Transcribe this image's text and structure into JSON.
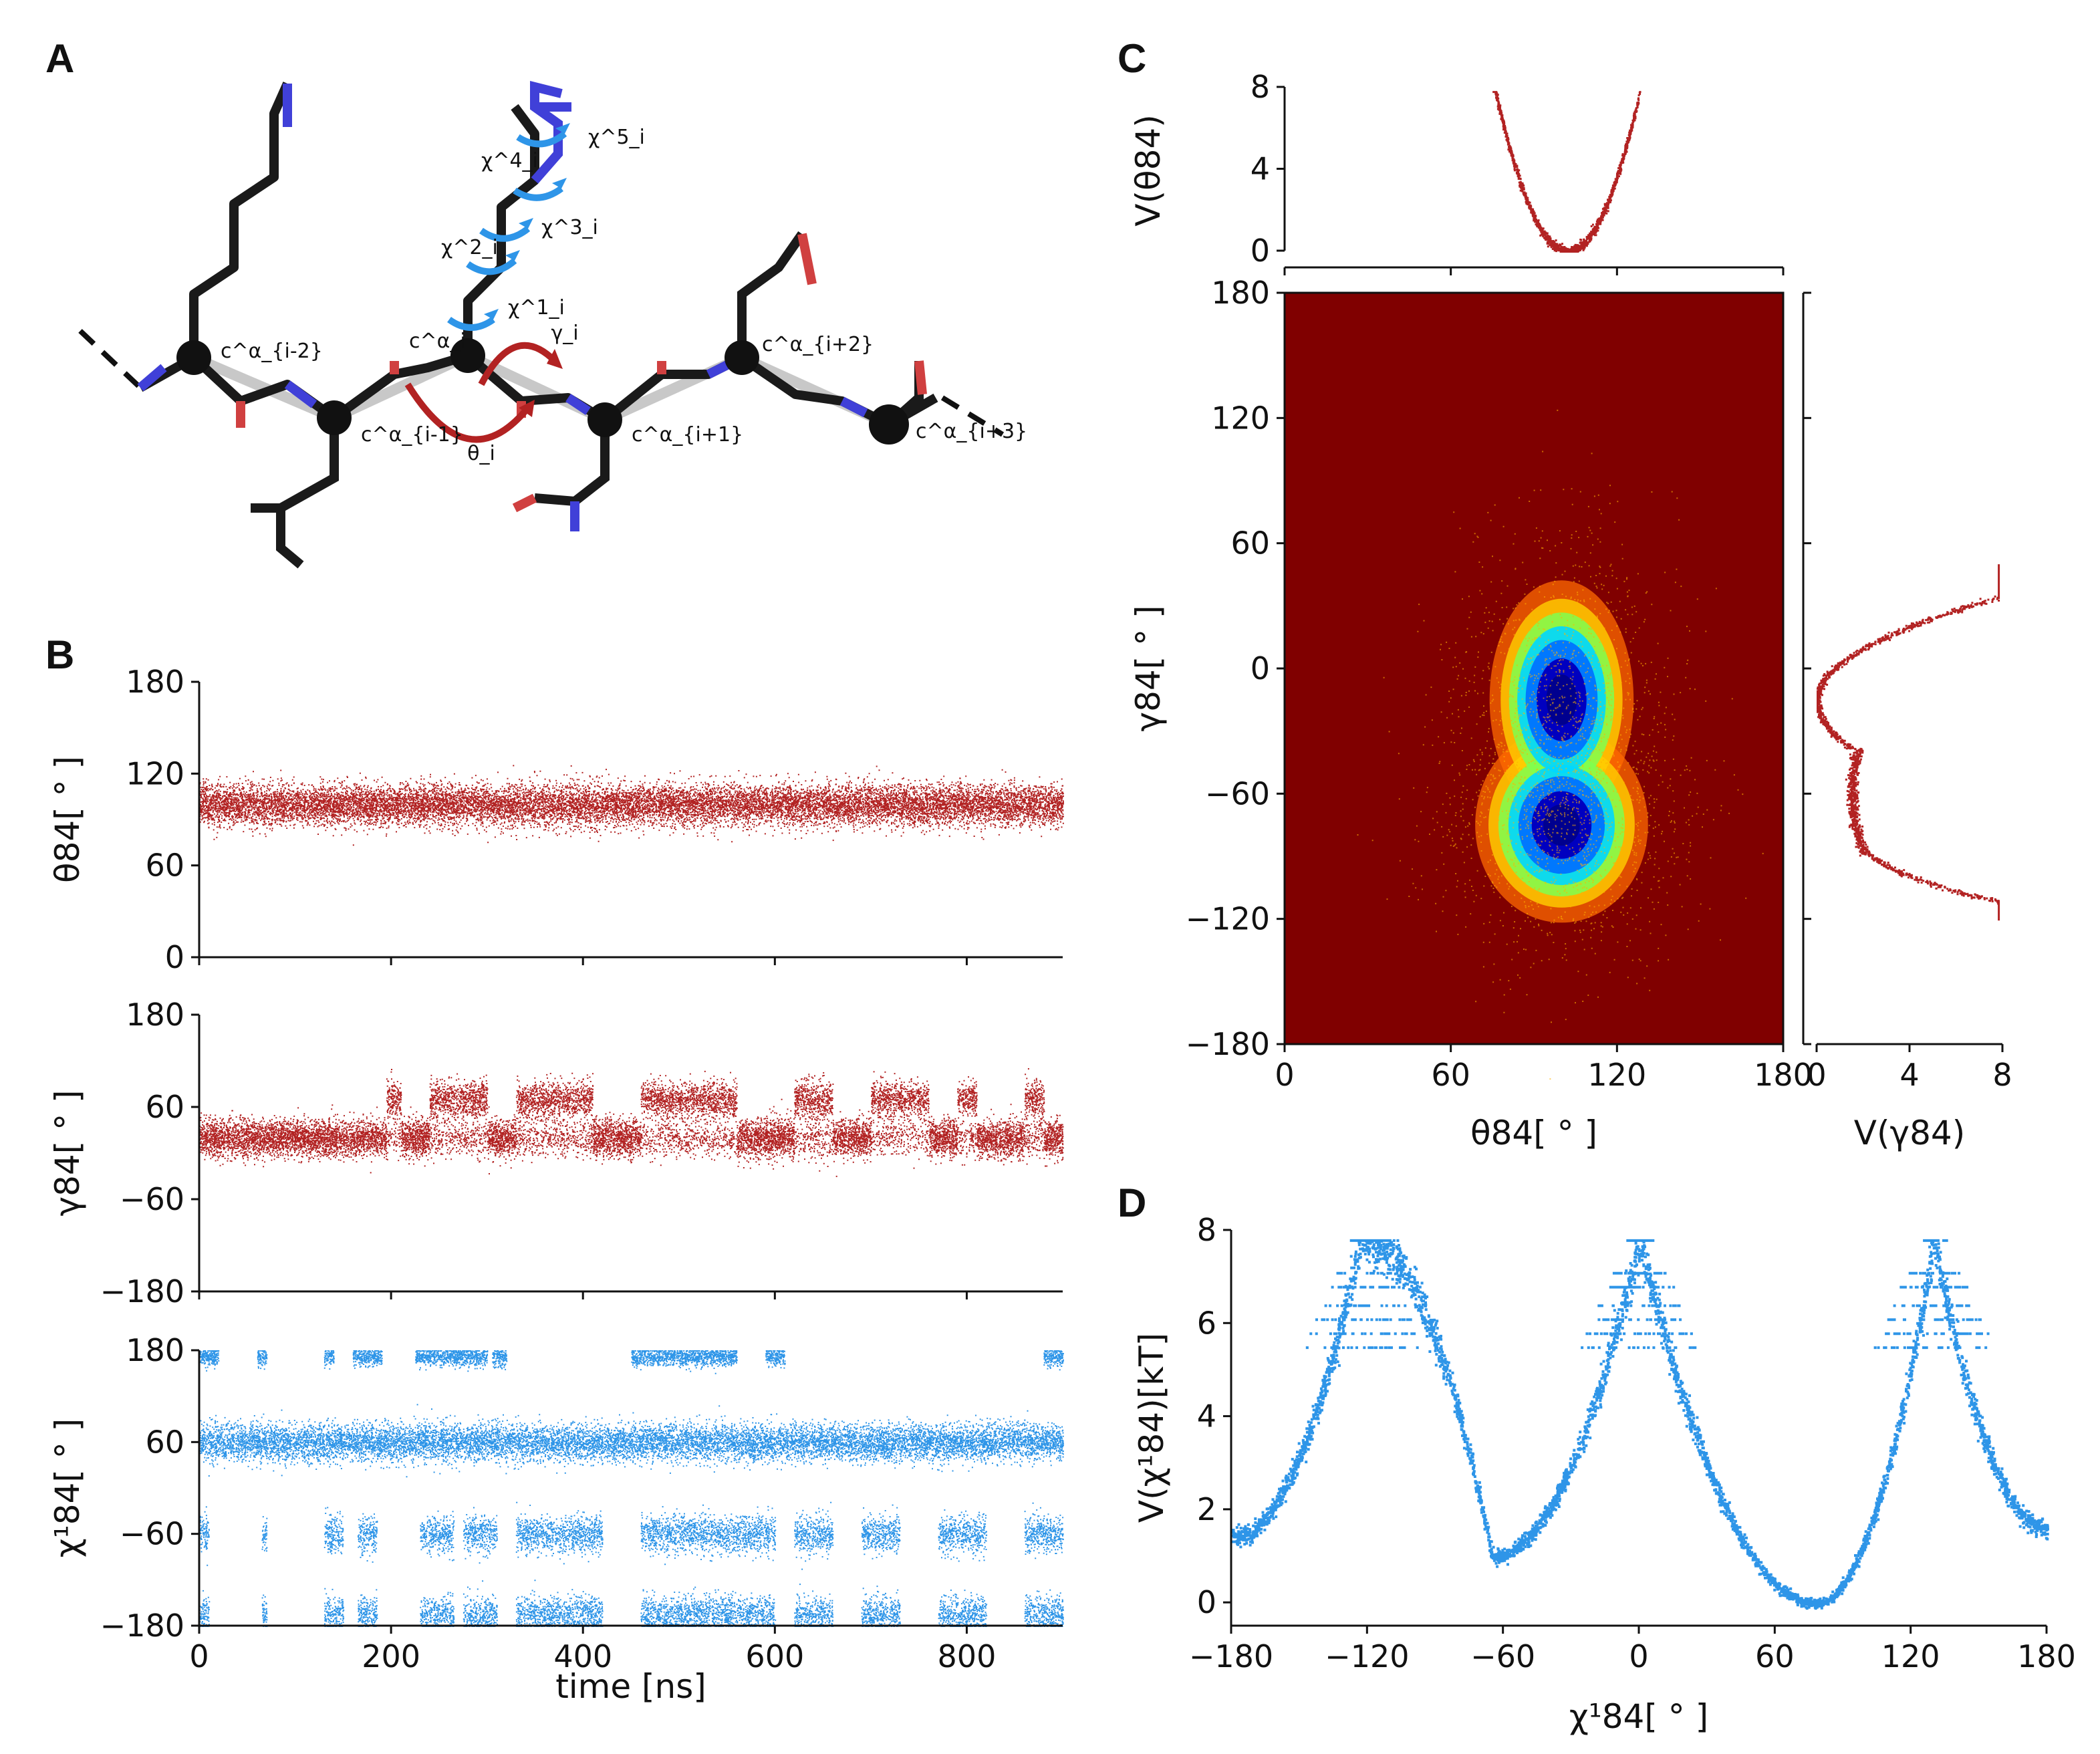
{
  "colors": {
    "red": "#b22222",
    "blue": "#2e95e8",
    "heat_bg": "#800000",
    "axis": "#111111",
    "nitrogen": "#4040d8",
    "oxygen": "#d04040"
  },
  "panels": {
    "a": {
      "letter": "A"
    },
    "b": {
      "letter": "B"
    },
    "c": {
      "letter": "C"
    },
    "d": {
      "letter": "D"
    }
  },
  "molecule": {
    "labels": [
      "c^α_{i-2}",
      "c^α_{i-1}",
      "c^α_i",
      "c^α_{i+1}",
      "c^α_{i+2}",
      "c^α_{i+3}"
    ],
    "angle_labels": [
      "θ_i",
      "γ_i"
    ],
    "chi_labels": [
      "χ^1_i",
      "χ^2_i",
      "χ^3_i",
      "χ^4_i",
      "χ^5_i"
    ]
  },
  "chart_data": [
    {
      "id": "B1",
      "type": "scatter",
      "ylabel": "θ84[ ° ]",
      "xlim": [
        0,
        900
      ],
      "ylim": [
        0,
        180
      ],
      "yticks": [
        "0",
        "60",
        "120",
        "180"
      ],
      "series": [
        {
          "color": "#b22222",
          "mean": 100,
          "spread_deg": 12,
          "notes": "dense band ~85–115 throughout"
        }
      ]
    },
    {
      "id": "B2",
      "type": "scatter",
      "ylabel": "γ84[ ° ]",
      "xlim": [
        0,
        900
      ],
      "ylim": [
        -180,
        180
      ],
      "yticks": [
        "−180",
        "−60",
        "60",
        "180"
      ],
      "series": [
        {
          "color": "#b22222",
          "baseline": 20,
          "upper_state": 70,
          "upper_state_windows": [
            [
              195,
              210
            ],
            [
              240,
              300
            ],
            [
              330,
              410
            ],
            [
              460,
              560
            ],
            [
              620,
              660
            ],
            [
              700,
              760
            ],
            [
              790,
              810
            ],
            [
              860,
              880
            ]
          ]
        }
      ]
    },
    {
      "id": "B3",
      "type": "scatter",
      "ylabel": "χ¹84[ ° ]",
      "xlabel": "time [ns]",
      "xlim": [
        0,
        900
      ],
      "ylim": [
        -180,
        180
      ],
      "xticks": [
        "0",
        "200",
        "400",
        "600",
        "800"
      ],
      "yticks": [
        "−180",
        "−60",
        "60",
        "180"
      ],
      "series": [
        {
          "color": "#2e95e8",
          "states": [
            {
              "center": 60,
              "windows": [
                [
                  0,
                  900
                ]
              ]
            },
            {
              "center": 172,
              "windows": [
                [
                  0,
                  20
                ],
                [
                  60,
                  70
                ],
                [
                  130,
                  140
                ],
                [
                  160,
                  190
                ],
                [
                  225,
                  300
                ],
                [
                  305,
                  320
                ],
                [
                  450,
                  560
                ],
                [
                  590,
                  610
                ],
                [
                  880,
                  900
                ]
              ]
            },
            {
              "center": -60,
              "windows": [
                [
                  0,
                  10
                ],
                [
                  65,
                  70
                ],
                [
                  130,
                  150
                ],
                [
                  165,
                  185
                ],
                [
                  230,
                  265
                ],
                [
                  275,
                  310
                ],
                [
                  330,
                  420
                ],
                [
                  460,
                  600
                ],
                [
                  620,
                  660
                ],
                [
                  690,
                  730
                ],
                [
                  770,
                  820
                ],
                [
                  860,
                  900
                ]
              ]
            },
            {
              "center": -165,
              "windows": [
                [
                  0,
                  10
                ],
                [
                  65,
                  70
                ],
                [
                  130,
                  150
                ],
                [
                  165,
                  185
                ],
                [
                  230,
                  265
                ],
                [
                  275,
                  310
                ],
                [
                  330,
                  420
                ],
                [
                  460,
                  600
                ],
                [
                  620,
                  660
                ],
                [
                  690,
                  730
                ],
                [
                  770,
                  820
                ],
                [
                  860,
                  900
                ]
              ]
            }
          ]
        }
      ]
    },
    {
      "id": "C_top",
      "type": "scatter",
      "ylabel": "V(θ84)",
      "xlim": [
        0,
        180
      ],
      "ylim": [
        0,
        8
      ],
      "yticks": [
        "0",
        "4",
        "8"
      ],
      "series": [
        {
          "color": "#b22222",
          "min_x": 102,
          "min_y": 0,
          "x_range": [
            75,
            128
          ],
          "cap": 7.8
        }
      ]
    },
    {
      "id": "C_main",
      "type": "heatmap",
      "xlabel": "θ84[ ° ]",
      "ylabel": "γ84[ ° ]",
      "xlim": [
        0,
        180
      ],
      "ylim": [
        -180,
        180
      ],
      "xticks": [
        "0",
        "60",
        "120",
        "180"
      ],
      "yticks": [
        "−180",
        "−120",
        "−60",
        "0",
        "60",
        "120",
        "180"
      ],
      "lobes": [
        {
          "x": 100,
          "y": -15,
          "sx": 10,
          "sy": 22
        },
        {
          "x": 100,
          "y": -75,
          "sx": 12,
          "sy": 18
        }
      ]
    },
    {
      "id": "C_right",
      "type": "scatter",
      "xlabel": "V(γ84)",
      "xlim": [
        0,
        8
      ],
      "ylim": [
        -180,
        180
      ],
      "xticks": [
        "0",
        "4",
        "8"
      ],
      "series": [
        {
          "color": "#b22222",
          "minima": [
            [
              -15,
              0
            ],
            [
              -60,
              1.5
            ]
          ],
          "range": [
            -120,
            50
          ]
        }
      ]
    },
    {
      "id": "D",
      "type": "scatter",
      "xlabel": "χ¹84[ ° ]",
      "ylabel": "V(χ¹84)[kT]",
      "xlim": [
        -180,
        180
      ],
      "ylim": [
        -0.5,
        8
      ],
      "xticks": [
        "−180",
        "−120",
        "−60",
        "0",
        "60",
        "120",
        "180"
      ],
      "yticks": [
        "0",
        "2",
        "4",
        "6",
        "8"
      ],
      "series": [
        {
          "color": "#2e95e8",
          "minima": [
            [
              -65,
              1.0
            ],
            [
              78,
              0.0
            ],
            [
              -175,
              1.4
            ]
          ],
          "maxima": [
            [
              -122,
              7.8
            ],
            [
              0,
              7.8
            ],
            [
              130,
              7.8
            ]
          ]
        }
      ]
    }
  ]
}
